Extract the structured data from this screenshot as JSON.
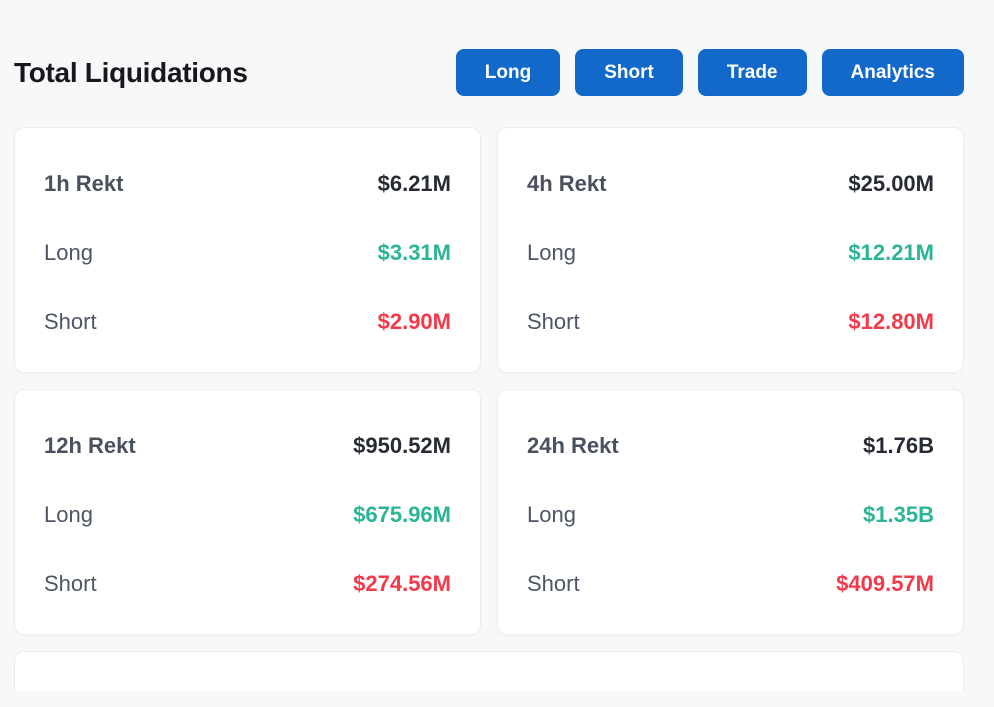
{
  "header": {
    "title": "Total Liquidations",
    "buttons": [
      "Long",
      "Short",
      "Trade",
      "Analytics"
    ]
  },
  "cards": [
    {
      "period": "1h Rekt",
      "total": "$6.21M",
      "long_label": "Long",
      "long_value": "$3.31M",
      "short_label": "Short",
      "short_value": "$2.90M"
    },
    {
      "period": "4h Rekt",
      "total": "$25.00M",
      "long_label": "Long",
      "long_value": "$12.21M",
      "short_label": "Short",
      "short_value": "$12.80M"
    },
    {
      "period": "12h Rekt",
      "total": "$950.52M",
      "long_label": "Long",
      "long_value": "$675.96M",
      "short_label": "Short",
      "short_value": "$274.56M"
    },
    {
      "period": "24h Rekt",
      "total": "$1.76B",
      "long_label": "Long",
      "long_value": "$1.35B",
      "short_label": "Short",
      "short_value": "$409.57M"
    }
  ],
  "colors": {
    "page_background": "#f7f8f9",
    "card_background": "#ffffff",
    "card_border": "#eaecee",
    "accent_blue": "#1269ca",
    "long_green": "#2bb596",
    "short_red": "#f23a4a",
    "title_text": "#16181b",
    "period_text": "#49515e",
    "total_text": "#272b33",
    "label_text": "#4d5664"
  }
}
